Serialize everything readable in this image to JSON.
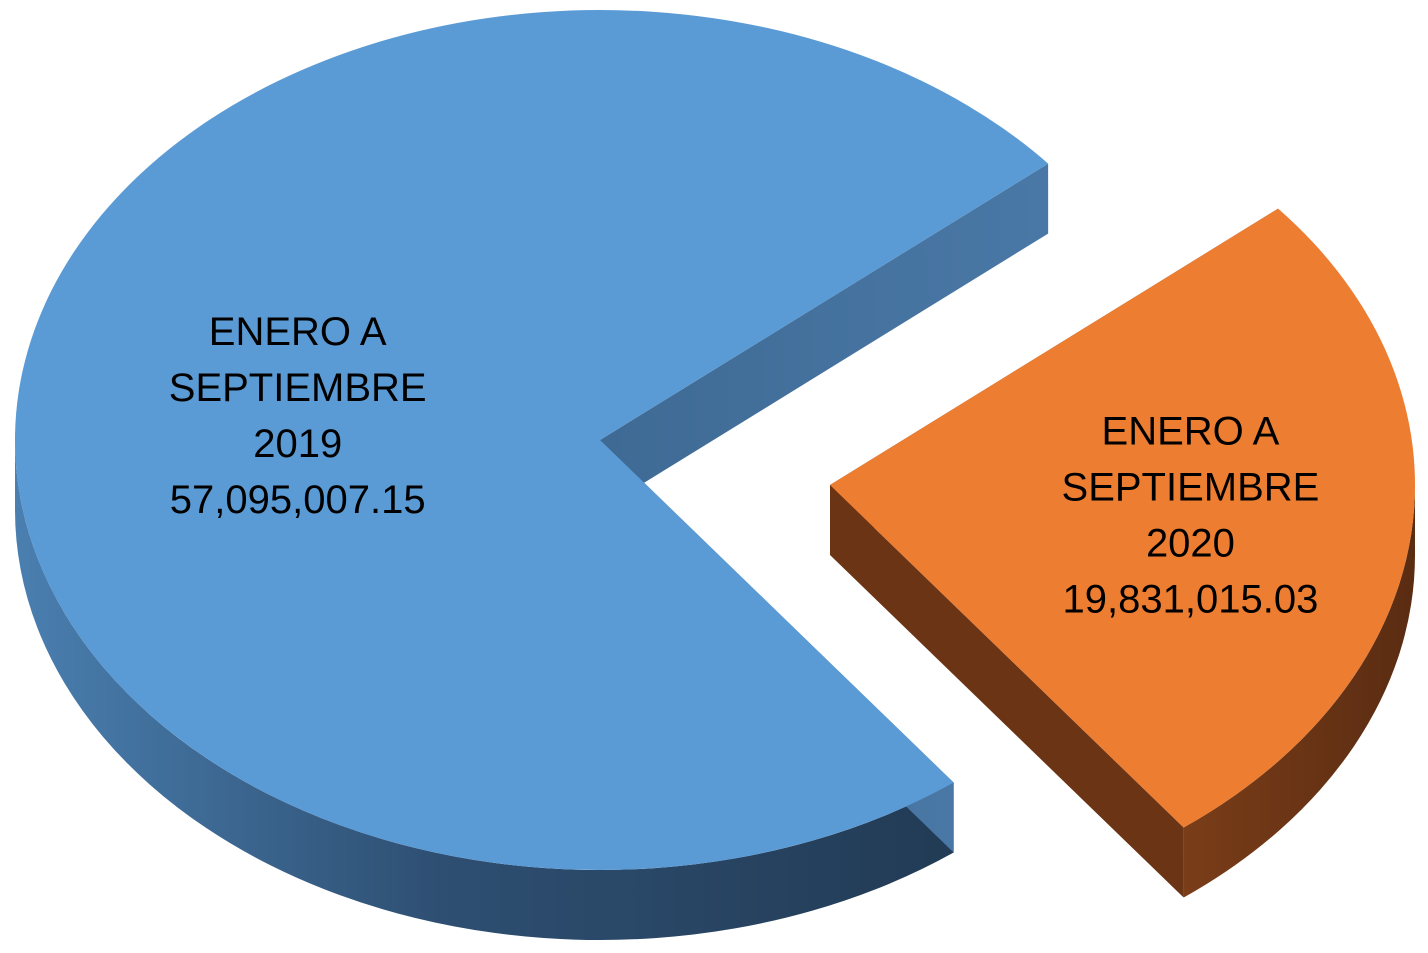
{
  "chart_data": {
    "type": "pie",
    "style": "3d-exploded",
    "title": "",
    "slices": [
      {
        "label_lines": [
          "ENERO A",
          "SEPTIEMBRE",
          "2019"
        ],
        "value_label": "57,095,007.15",
        "value": 57095007.15,
        "color": "#5b9bd5",
        "side_color": "#2f5478"
      },
      {
        "label_lines": [
          "ENERO A",
          "SEPTIEMBRE",
          "2020"
        ],
        "value_label": "19,831,015.03",
        "value": 19831015.03,
        "color": "#ed7d31",
        "side_color": "#6b3415"
      }
    ],
    "legend": "none"
  }
}
